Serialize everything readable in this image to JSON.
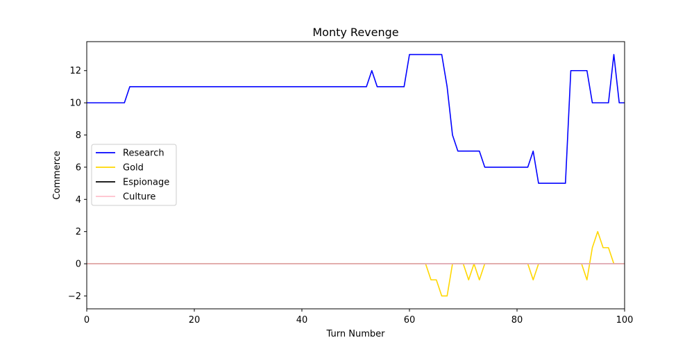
{
  "chart_data": {
    "type": "line",
    "title": "Monty Revenge",
    "xlabel": "Turn Number",
    "ylabel": "Commerce",
    "xlim": [
      0,
      100
    ],
    "ylim": [
      -2.8,
      13.8
    ],
    "xticks": [
      0,
      20,
      40,
      60,
      80,
      100
    ],
    "yticks": [
      -2,
      0,
      2,
      4,
      6,
      8,
      10,
      12
    ],
    "grid": false,
    "legend_position": "center-left",
    "x": [
      0,
      1,
      2,
      3,
      4,
      5,
      6,
      7,
      8,
      9,
      10,
      11,
      12,
      13,
      14,
      15,
      16,
      17,
      18,
      19,
      20,
      21,
      22,
      23,
      24,
      25,
      26,
      27,
      28,
      29,
      30,
      31,
      32,
      33,
      34,
      35,
      36,
      37,
      38,
      39,
      40,
      41,
      42,
      43,
      44,
      45,
      46,
      47,
      48,
      49,
      50,
      51,
      52,
      53,
      54,
      55,
      56,
      57,
      58,
      59,
      60,
      61,
      62,
      63,
      64,
      65,
      66,
      67,
      68,
      69,
      70,
      71,
      72,
      73,
      74,
      75,
      76,
      77,
      78,
      79,
      80,
      81,
      82,
      83,
      84,
      85,
      86,
      87,
      88,
      89,
      90,
      91,
      92,
      93,
      94,
      95,
      96,
      97,
      98,
      99,
      100
    ],
    "series": [
      {
        "name": "Research",
        "color": "#0000ff",
        "values": [
          10,
          10,
          10,
          10,
          10,
          10,
          10,
          10,
          11,
          11,
          11,
          11,
          11,
          11,
          11,
          11,
          11,
          11,
          11,
          11,
          11,
          11,
          11,
          11,
          11,
          11,
          11,
          11,
          11,
          11,
          11,
          11,
          11,
          11,
          11,
          11,
          11,
          11,
          11,
          11,
          11,
          11,
          11,
          11,
          11,
          11,
          11,
          11,
          11,
          11,
          11,
          11,
          11,
          12,
          11,
          11,
          11,
          11,
          11,
          11,
          13,
          13,
          13,
          13,
          13,
          13,
          13,
          11,
          8,
          7,
          7,
          7,
          7,
          7,
          6,
          6,
          6,
          6,
          6,
          6,
          6,
          6,
          6,
          7,
          5,
          5,
          5,
          5,
          5,
          5,
          12,
          12,
          12,
          12,
          10,
          10,
          10,
          10,
          13,
          10,
          10
        ]
      },
      {
        "name": "Gold",
        "color": "#ffd700",
        "values": [
          0,
          0,
          0,
          0,
          0,
          0,
          0,
          0,
          0,
          0,
          0,
          0,
          0,
          0,
          0,
          0,
          0,
          0,
          0,
          0,
          0,
          0,
          0,
          0,
          0,
          0,
          0,
          0,
          0,
          0,
          0,
          0,
          0,
          0,
          0,
          0,
          0,
          0,
          0,
          0,
          0,
          0,
          0,
          0,
          0,
          0,
          0,
          0,
          0,
          0,
          0,
          0,
          0,
          0,
          0,
          0,
          0,
          0,
          0,
          0,
          0,
          0,
          0,
          0,
          -1,
          -1,
          -2,
          -2,
          0,
          0,
          0,
          -1,
          0,
          -1,
          0,
          0,
          0,
          0,
          0,
          0,
          0,
          0,
          0,
          -1,
          0,
          0,
          0,
          0,
          0,
          0,
          0,
          0,
          0,
          -1,
          1,
          2,
          1,
          1,
          0,
          0,
          0
        ]
      },
      {
        "name": "Espionage",
        "color": "#000000",
        "values": [
          0,
          0,
          0,
          0,
          0,
          0,
          0,
          0,
          0,
          0,
          0,
          0,
          0,
          0,
          0,
          0,
          0,
          0,
          0,
          0,
          0,
          0,
          0,
          0,
          0,
          0,
          0,
          0,
          0,
          0,
          0,
          0,
          0,
          0,
          0,
          0,
          0,
          0,
          0,
          0,
          0,
          0,
          0,
          0,
          0,
          0,
          0,
          0,
          0,
          0,
          0,
          0,
          0,
          0,
          0,
          0,
          0,
          0,
          0,
          0,
          0,
          0,
          0,
          0,
          0,
          0,
          0,
          0,
          0,
          0,
          0,
          0,
          0,
          0,
          0,
          0,
          0,
          0,
          0,
          0,
          0,
          0,
          0,
          0,
          0,
          0,
          0,
          0,
          0,
          0,
          0,
          0,
          0,
          0,
          0,
          0,
          0,
          0,
          0,
          0,
          0
        ]
      },
      {
        "name": "Culture",
        "color": "#ffc0cb",
        "values": [
          0,
          0,
          0,
          0,
          0,
          0,
          0,
          0,
          0,
          0,
          0,
          0,
          0,
          0,
          0,
          0,
          0,
          0,
          0,
          0,
          0,
          0,
          0,
          0,
          0,
          0,
          0,
          0,
          0,
          0,
          0,
          0,
          0,
          0,
          0,
          0,
          0,
          0,
          0,
          0,
          0,
          0,
          0,
          0,
          0,
          0,
          0,
          0,
          0,
          0,
          0,
          0,
          0,
          0,
          0,
          0,
          0,
          0,
          0,
          0,
          0,
          0,
          0,
          0,
          0,
          0,
          0,
          0,
          0,
          0,
          0,
          0,
          0,
          0,
          0,
          0,
          0,
          0,
          0,
          0,
          0,
          0,
          0,
          0,
          0,
          0,
          0,
          0,
          0,
          0,
          0,
          0,
          0,
          0,
          0,
          0,
          0,
          0,
          0,
          0,
          0
        ]
      }
    ]
  }
}
